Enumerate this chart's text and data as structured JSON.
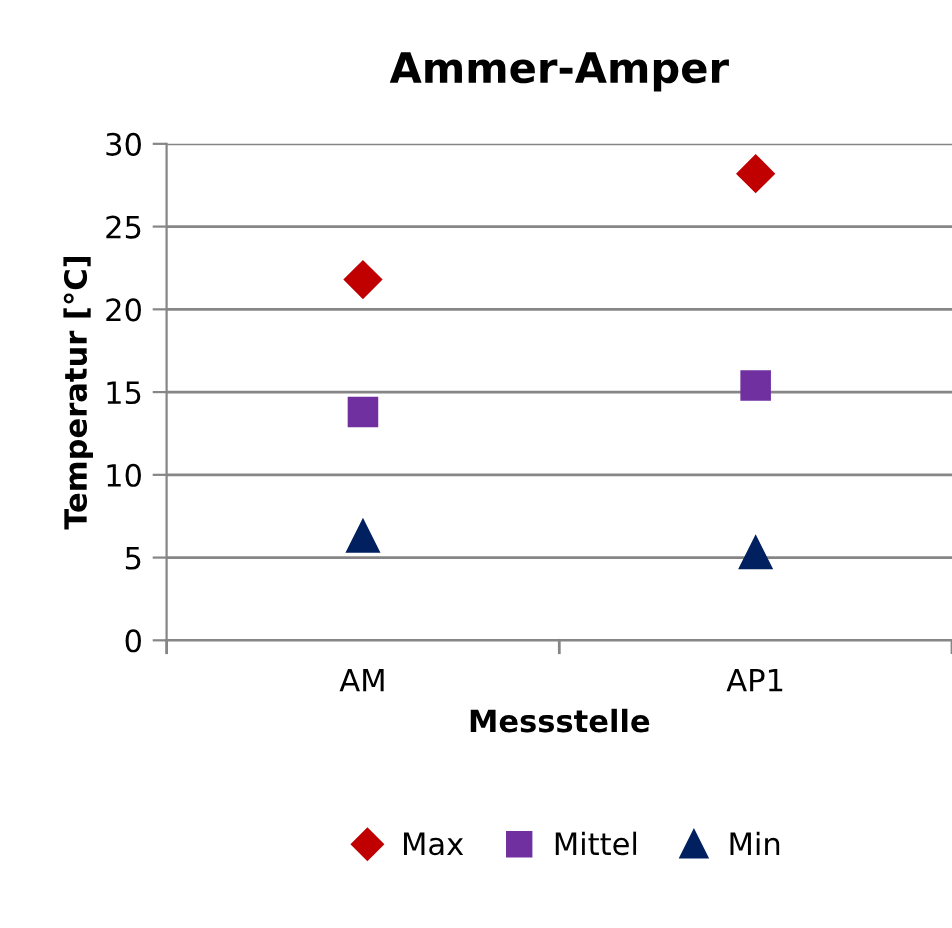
{
  "chart_data": {
    "type": "scatter",
    "title": "Ammer-Amper",
    "xlabel": "Messstelle",
    "ylabel": "Temperatur [°C]",
    "categories": [
      "AM",
      "AP1"
    ],
    "series": [
      {
        "name": "Max",
        "color": "#c00000",
        "marker": "diamond",
        "values": [
          21.8,
          28.2
        ]
      },
      {
        "name": "Mittel",
        "color": "#7030a0",
        "marker": "square",
        "values": [
          13.8,
          15.4
        ]
      },
      {
        "name": "Min",
        "color": "#002060",
        "marker": "triangle",
        "values": [
          6.3,
          5.3
        ]
      }
    ],
    "ylim": [
      0,
      30
    ],
    "yticks": [
      0,
      5,
      10,
      15,
      20,
      25,
      30
    ],
    "grid": "y",
    "legend": "bottom"
  }
}
